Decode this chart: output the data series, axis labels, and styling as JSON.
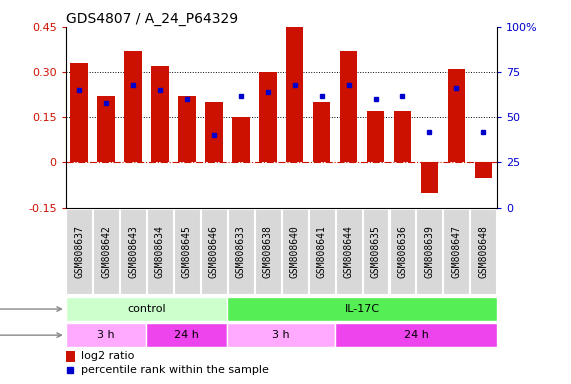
{
  "title": "GDS4807 / A_24_P64329",
  "samples": [
    "GSM808637",
    "GSM808642",
    "GSM808643",
    "GSM808634",
    "GSM808645",
    "GSM808646",
    "GSM808633",
    "GSM808638",
    "GSM808640",
    "GSM808641",
    "GSM808644",
    "GSM808635",
    "GSM808636",
    "GSM808639",
    "GSM808647",
    "GSM808648"
  ],
  "log2_ratio": [
    0.33,
    0.22,
    0.37,
    0.32,
    0.22,
    0.2,
    0.15,
    0.3,
    0.45,
    0.2,
    0.37,
    0.17,
    0.17,
    -0.1,
    0.31,
    -0.05
  ],
  "percentile": [
    65,
    58,
    68,
    65,
    60,
    40,
    62,
    64,
    68,
    62,
    68,
    60,
    62,
    42,
    66,
    42
  ],
  "bar_color": "#cc1100",
  "dot_color": "#0000cc",
  "ylim_left": [
    -0.15,
    0.45
  ],
  "ylim_right": [
    0,
    100
  ],
  "yticks_left": [
    -0.15,
    0.0,
    0.15,
    0.3,
    0.45
  ],
  "yticks_right": [
    0,
    25,
    50,
    75,
    100
  ],
  "ytick_labels_left": [
    "-0.15",
    "0",
    "0.15",
    "0.30",
    "0.45"
  ],
  "ytick_labels_right": [
    "0",
    "25",
    "50",
    "75",
    "100%"
  ],
  "hlines": [
    0.15,
    0.3
  ],
  "agent_groups": [
    {
      "label": "control",
      "start": 0,
      "end": 6,
      "color": "#ccffcc"
    },
    {
      "label": "IL-17C",
      "start": 6,
      "end": 16,
      "color": "#55ee55"
    }
  ],
  "time_groups": [
    {
      "label": "3 h",
      "start": 0,
      "end": 3,
      "color": "#ffaaff"
    },
    {
      "label": "24 h",
      "start": 3,
      "end": 6,
      "color": "#ee44ee"
    },
    {
      "label": "3 h",
      "start": 6,
      "end": 10,
      "color": "#ffaaff"
    },
    {
      "label": "24 h",
      "start": 10,
      "end": 16,
      "color": "#ee44ee"
    }
  ],
  "legend_log2_color": "#cc1100",
  "legend_pct_color": "#0000cc",
  "bg_color": "#ffffff",
  "title_fontsize": 10,
  "tick_fontsize": 8,
  "label_fontsize": 8,
  "sample_label_fontsize": 7
}
